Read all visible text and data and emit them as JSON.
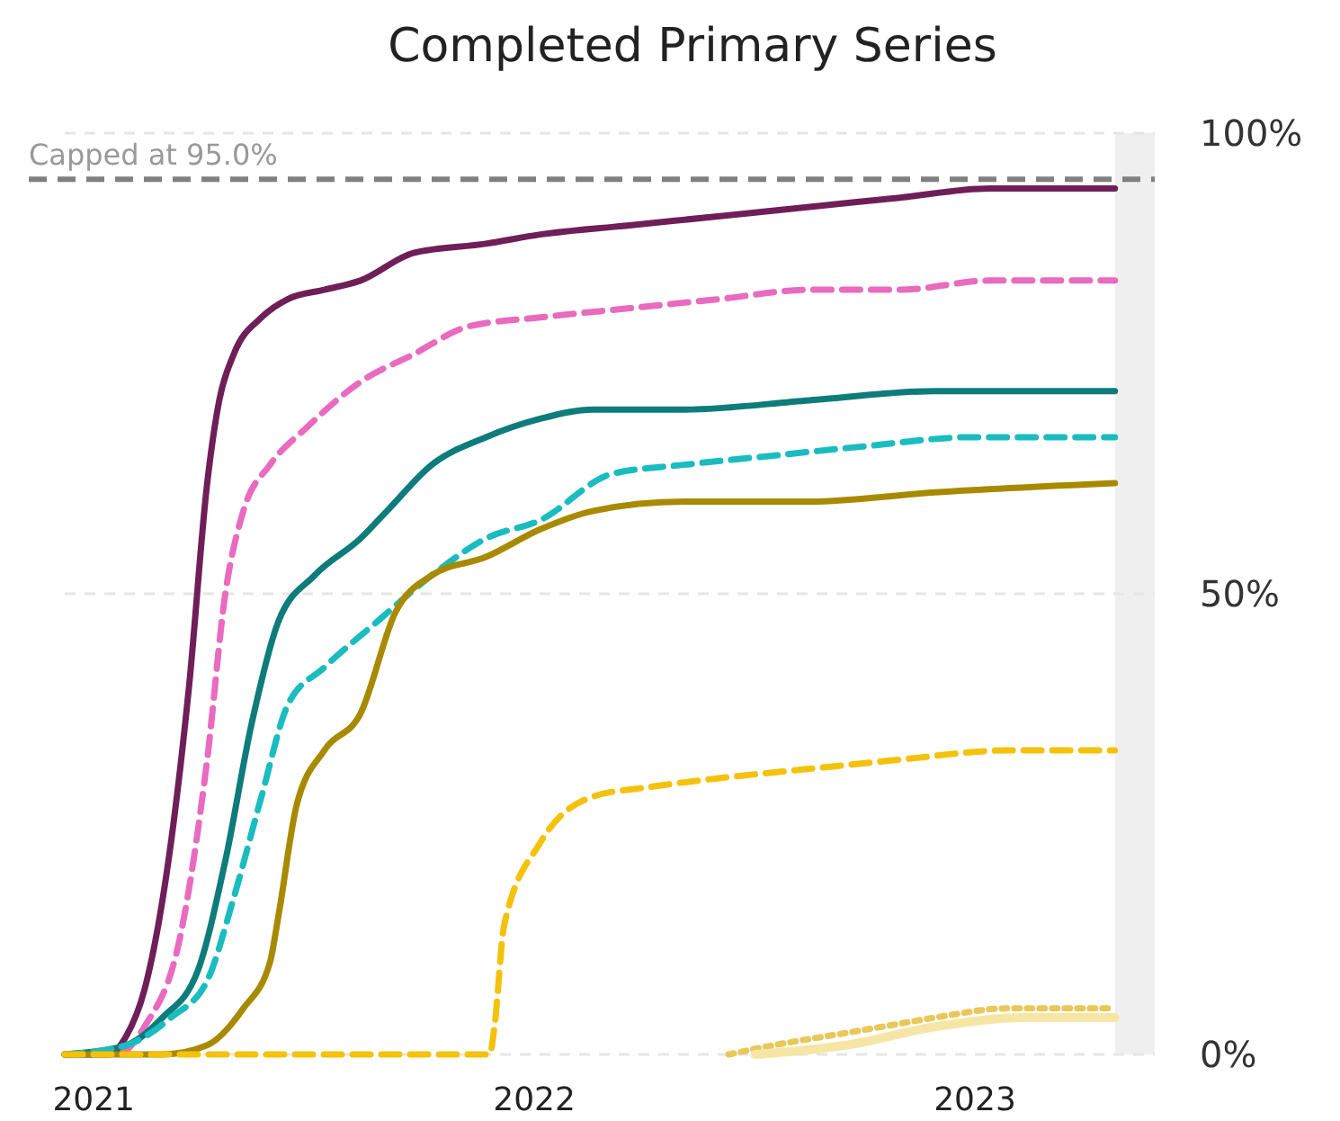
{
  "chart_data": {
    "type": "line",
    "title": "Completed Primary Series",
    "xlim": [
      "2020-12-08",
      "2023-05-30"
    ],
    "xticks": [
      {
        "value": "2021-01-01",
        "label": "2021"
      },
      {
        "value": "2022-01-01",
        "label": "2022"
      },
      {
        "value": "2023-01-01",
        "label": "2023"
      }
    ],
    "ylim": [
      0,
      100
    ],
    "yticks": [
      {
        "value": 0,
        "label": "0%"
      },
      {
        "value": 50,
        "label": "50%"
      },
      {
        "value": 100,
        "label": "100%"
      }
    ],
    "grid": "y",
    "marker": "none",
    "ref_lines": [
      {
        "axis": "y",
        "value": 95,
        "label": "Capped at 95.0%",
        "color": "#808080",
        "line_style": "dashed"
      }
    ],
    "bands": [
      {
        "axis": "x",
        "from": "2023-04-27",
        "to": "2023-05-30",
        "color": "#efefef"
      }
    ],
    "series": [
      {
        "color": "#6e1f58",
        "line_style": "solid",
        "x": [
          "2020-12-08",
          "2021-01-13",
          "2021-01-28",
          "2021-02-12",
          "2021-03-06",
          "2021-03-21",
          "2021-04-05",
          "2021-04-15",
          "2021-04-27",
          "2021-05-20",
          "2021-06-11",
          "2021-07-11",
          "2021-08-10",
          "2021-09-23",
          "2021-11-22",
          "2022-01-06",
          "2022-03-21",
          "2022-06-04",
          "2022-08-17",
          "2022-10-31",
          "2023-01-13",
          "2023-04-27"
        ],
        "values": [
          0,
          0,
          2,
          7,
          23,
          40,
          62,
          71,
          76,
          80,
          82,
          83,
          84,
          87,
          88,
          89,
          90,
          91,
          92,
          93,
          94,
          94
        ]
      },
      {
        "color": "#e86bbf",
        "line_style": "dashed",
        "x": [
          "2020-12-08",
          "2021-01-20",
          "2021-02-12",
          "2021-03-14",
          "2021-04-05",
          "2021-04-20",
          "2021-05-05",
          "2021-05-27",
          "2021-06-26",
          "2021-08-10",
          "2021-09-23",
          "2021-11-07",
          "2022-01-06",
          "2022-03-21",
          "2022-06-04",
          "2022-08-17",
          "2022-10-31",
          "2023-01-13",
          "2023-04-27"
        ],
        "values": [
          0,
          0,
          3,
          13,
          32,
          50,
          59,
          64,
          68,
          73,
          76,
          79,
          80,
          81,
          82,
          83,
          83,
          84,
          84
        ]
      },
      {
        "color": "#0e7c7b",
        "line_style": "solid",
        "x": [
          "2020-12-08",
          "2021-01-28",
          "2021-02-27",
          "2021-03-28",
          "2021-04-20",
          "2021-05-12",
          "2021-06-03",
          "2021-07-03",
          "2021-08-10",
          "2021-09-01",
          "2021-10-08",
          "2021-11-22",
          "2022-01-06",
          "2022-02-19",
          "2022-05-05",
          "2022-08-17",
          "2022-11-29",
          "2023-04-27"
        ],
        "values": [
          0,
          1,
          4,
          9,
          21,
          36,
          47,
          52,
          56,
          59,
          64,
          67,
          69,
          70,
          70,
          71,
          72,
          72
        ]
      },
      {
        "color": "#1bbcc0",
        "line_style": "dashed",
        "x": [
          "2020-12-08",
          "2021-01-28",
          "2021-03-06",
          "2021-04-05",
          "2021-04-27",
          "2021-05-20",
          "2021-06-11",
          "2021-07-11",
          "2021-08-24",
          "2021-10-08",
          "2021-11-22",
          "2022-01-06",
          "2022-03-06",
          "2022-05-05",
          "2022-07-18",
          "2022-10-01",
          "2022-12-29",
          "2023-04-27"
        ],
        "values": [
          0,
          1,
          4,
          8,
          17,
          28,
          38,
          42,
          47,
          52,
          56,
          58,
          63,
          64,
          65,
          66,
          67,
          67
        ]
      },
      {
        "color": "#a88a00",
        "line_style": "solid",
        "x": [
          "2020-12-08",
          "2021-02-27",
          "2021-04-05",
          "2021-05-05",
          "2021-05-27",
          "2021-06-03",
          "2021-06-18",
          "2021-07-11",
          "2021-08-10",
          "2021-09-08",
          "2021-10-08",
          "2021-11-22",
          "2022-01-06",
          "2022-02-19",
          "2022-05-05",
          "2022-08-17",
          "2022-11-29",
          "2023-04-27"
        ],
        "values": [
          0,
          0,
          1,
          5,
          10,
          15,
          27,
          33,
          37,
          48,
          52,
          54,
          57,
          59,
          60,
          60,
          61,
          62
        ]
      },
      {
        "color": "#f4c20d",
        "line_style": "dashed",
        "x": [
          "2020-12-08",
          "2021-05-27",
          "2021-11-25",
          "2021-11-29",
          "2021-12-07",
          "2022-01-06",
          "2022-02-19",
          "2022-04-05",
          "2022-06-04",
          "2022-08-17",
          "2022-10-31",
          "2023-01-28",
          "2023-04-27"
        ],
        "values": [
          0,
          0,
          0,
          3,
          14,
          23,
          28,
          29,
          30,
          31,
          32,
          33,
          33
        ]
      },
      {
        "color": "#e8c85a",
        "line_style": "dotted",
        "x": [
          "2022-06-11",
          "2022-07-18",
          "2022-09-01",
          "2022-10-16",
          "2022-11-29",
          "2023-01-28",
          "2023-04-27"
        ],
        "values": [
          0,
          1,
          2,
          3,
          4,
          5,
          5
        ]
      },
      {
        "color": "#f6e6a6",
        "line_style": "solid",
        "x": [
          "2022-07-03",
          "2022-09-16",
          "2022-11-29",
          "2023-02-12",
          "2023-04-27"
        ],
        "values": [
          0,
          1,
          3,
          4,
          4
        ]
      }
    ]
  }
}
